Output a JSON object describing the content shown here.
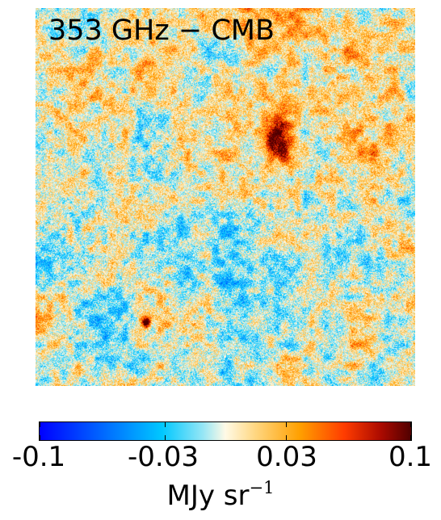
{
  "map": {
    "title": "353 GHz − CMB"
  },
  "colorbar": {
    "ticks": [
      "-0.1",
      "-0.03",
      "0.03",
      "0.1"
    ],
    "tick_values": [
      -0.1,
      -0.03,
      0.03,
      0.1
    ],
    "range": [
      -0.1,
      0.1
    ],
    "unit_main": "MJy sr",
    "unit_exponent": "−1",
    "colors": {
      "low": "#0000ff",
      "mid_low": "#00c8ff",
      "center": "#ffffff",
      "mid_high": "#ffa000",
      "high": "#ff3800",
      "max": "#500000"
    }
  }
}
